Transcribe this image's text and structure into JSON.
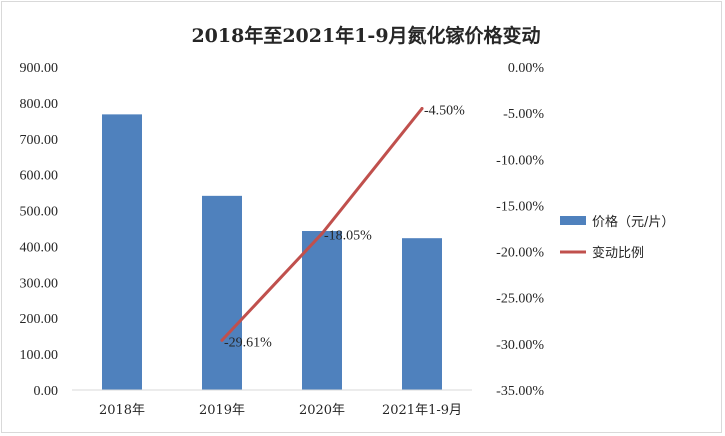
{
  "chart_data": {
    "type": "bar+line",
    "title": "2018年至2021年1-9月氮化镓价格变动",
    "categories": [
      "2018年",
      "2019年",
      "2020年",
      "2021年1-9月"
    ],
    "series": [
      {
        "name": "价格（元/片）",
        "type": "bar",
        "axis": "left",
        "color": "#4f81bd",
        "values": [
          768,
          541,
          443,
          423
        ]
      },
      {
        "name": "变动比例",
        "type": "line",
        "axis": "right",
        "color": "#c0504d",
        "values": [
          null,
          -29.61,
          -18.05,
          -4.5
        ],
        "labels": [
          null,
          "-29.61%",
          "-18.05%",
          "-4.50%"
        ]
      }
    ],
    "y_left": {
      "min": 0,
      "max": 900,
      "step": 100,
      "tick_labels": [
        "0.00",
        "100.00",
        "200.00",
        "300.00",
        "400.00",
        "500.00",
        "600.00",
        "700.00",
        "800.00",
        "900.00"
      ]
    },
    "y_right": {
      "min": -35,
      "max": 0,
      "step": 5,
      "tick_labels": [
        "-35.00%",
        "-30.00%",
        "-25.00%",
        "-20.00%",
        "-15.00%",
        "-10.00%",
        "-5.00%",
        "0.00%"
      ]
    },
    "grid": false,
    "legend": {
      "position": "right",
      "entries": [
        "价格（元/片）",
        "变动比例"
      ]
    }
  }
}
